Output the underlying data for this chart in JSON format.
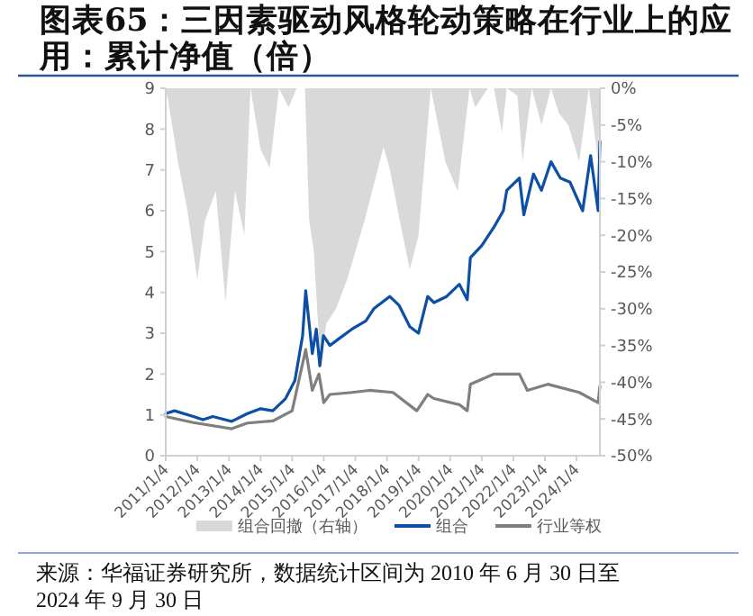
{
  "chart_data": {
    "type": "line",
    "title": "图表65：三因素驱动风格轮动策略在行业上的应用：累计净值（倍）",
    "annotations": [
      "来源：华福证券研究所，数据统计区间为 2010 年 6 月 30 日至 2024 年 9 月 30 日"
    ],
    "xlim": [
      "2011-01-04",
      "2024-09-30"
    ],
    "xticks": [
      {
        "value": "2011-01-04",
        "label": "2011/1/4"
      },
      {
        "value": "2012-01-04",
        "label": "2012/1/4"
      },
      {
        "value": "2013-01-04",
        "label": "2013/1/4"
      },
      {
        "value": "2014-01-04",
        "label": "2014/1/4"
      },
      {
        "value": "2015-01-04",
        "label": "2015/1/4"
      },
      {
        "value": "2016-01-04",
        "label": "2016/1/4"
      },
      {
        "value": "2017-01-04",
        "label": "2017/1/4"
      },
      {
        "value": "2018-01-04",
        "label": "2018/1/4"
      },
      {
        "value": "2019-01-04",
        "label": "2019/1/4"
      },
      {
        "value": "2020-01-04",
        "label": "2020/1/4"
      },
      {
        "value": "2021-01-04",
        "label": "2021/1/4"
      },
      {
        "value": "2022-01-04",
        "label": "2022/1/4"
      },
      {
        "value": "2023-01-04",
        "label": "2023/1/4"
      },
      {
        "value": "2024-01-04",
        "label": "2024/1/4"
      }
    ],
    "ylim": [
      0,
      9
    ],
    "yticks": [
      0,
      1,
      2,
      3,
      4,
      5,
      6,
      7,
      8,
      9
    ],
    "y2lim": [
      -50,
      0
    ],
    "y2ticks": [
      {
        "value": 0,
        "label": "0%"
      },
      {
        "value": -5,
        "label": "-5%"
      },
      {
        "value": -10,
        "label": "-10%"
      },
      {
        "value": -15,
        "label": "-15%"
      },
      {
        "value": -20,
        "label": "-20%"
      },
      {
        "value": -25,
        "label": "-25%"
      },
      {
        "value": -30,
        "label": "-30%"
      },
      {
        "value": -35,
        "label": "-35%"
      },
      {
        "value": -40,
        "label": "-40%"
      },
      {
        "value": -45,
        "label": "-45%"
      },
      {
        "value": -50,
        "label": "-50%"
      }
    ],
    "legend": "bottom",
    "series": [
      {
        "name": "组合回撤（右轴）",
        "type": "area",
        "axis": "y2",
        "color": "#d9d9d9",
        "x": [
          "2011-01-04",
          "2011-02-05",
          "2011-05-25",
          "2011-09-10",
          "2012-01-04",
          "2012-04-01",
          "2012-08-05",
          "2012-11-25",
          "2013-03-15",
          "2013-07-01",
          "2013-09-10",
          "2014-01-04",
          "2014-04-20",
          "2014-08-05",
          "2014-11-25",
          "2015-02-25",
          "2015-06-01",
          "2015-07-20",
          "2015-09-10",
          "2015-11-25",
          "2016-02-05",
          "2016-05-25",
          "2016-10-01",
          "2017-04-20",
          "2017-11-25",
          "2018-02-05",
          "2018-06-01",
          "2018-09-25",
          "2019-01-04",
          "2019-05-25",
          "2019-11-10",
          "2020-04-01",
          "2020-08-15",
          "2020-10-20",
          "2021-03-15",
          "2021-05-25",
          "2021-08-25",
          "2021-10-20",
          "2022-02-20",
          "2022-04-20",
          "2022-08-05",
          "2022-11-25",
          "2023-03-15",
          "2023-06-15",
          "2023-10-01",
          "2024-02-05",
          "2024-05-25",
          "2024-09-10",
          "2024-09-30"
        ],
        "values": [
          0,
          -2,
          -10,
          -16.5,
          -26,
          -18,
          -14,
          -29,
          -14,
          -20,
          0,
          -8.3,
          -10.8,
          0,
          -2.6,
          0,
          0,
          -18,
          -22,
          -37,
          -32,
          -30,
          -26,
          -18,
          -8,
          -11,
          -18,
          -24.7,
          -20,
          0,
          -10,
          -14,
          0,
          -2.6,
          0,
          0,
          -6,
          0,
          -1,
          -10,
          0,
          -5,
          0,
          -3.4,
          -5,
          -10,
          0,
          -10,
          0
        ]
      },
      {
        "name": "组合",
        "color": "#0d4ea6",
        "x": [
          "2011-01-04",
          "2011-04-15",
          "2011-11-20",
          "2012-03-10",
          "2012-07-01",
          "2013-02-05",
          "2013-08-05",
          "2014-01-05",
          "2014-05-25",
          "2014-10-20",
          "2015-02-05",
          "2015-05-05",
          "2015-06-10",
          "2015-08-25",
          "2015-10-10",
          "2015-11-20",
          "2016-01-01",
          "2016-03-15",
          "2016-07-01",
          "2016-11-25",
          "2017-05-05",
          "2017-08-05",
          "2018-02-05",
          "2018-05-25",
          "2018-09-25",
          "2019-01-03",
          "2019-04-20",
          "2019-07-01",
          "2019-11-25",
          "2020-04-20",
          "2020-07-20",
          "2020-08-25",
          "2021-01-04",
          "2021-05-25",
          "2021-09-10",
          "2021-10-20",
          "2022-03-15",
          "2022-05-05",
          "2022-08-25",
          "2022-11-25",
          "2023-03-15",
          "2023-07-01",
          "2023-10-20",
          "2024-03-15",
          "2024-06-15",
          "2024-09-10",
          "2024-09-30"
        ],
        "values": [
          1.03,
          1.1,
          0.96,
          0.88,
          0.96,
          0.84,
          1.03,
          1.15,
          1.1,
          1.4,
          1.84,
          2.94,
          4.04,
          2.5,
          3.1,
          2.2,
          2.94,
          2.7,
          2.87,
          3.1,
          3.3,
          3.6,
          3.9,
          3.68,
          3.16,
          3.0,
          3.9,
          3.75,
          3.9,
          4.2,
          3.82,
          4.85,
          5.15,
          5.6,
          6.0,
          6.5,
          6.8,
          5.9,
          6.9,
          6.5,
          7.2,
          6.8,
          6.7,
          6.0,
          7.35,
          6.0,
          7.7
        ]
      },
      {
        "name": "行业等权",
        "color": "#7f7f7f",
        "x": [
          "2011-01-04",
          "2011-11-20",
          "2013-02-05",
          "2013-08-05",
          "2014-05-25",
          "2015-01-04",
          "2015-06-10",
          "2015-08-25",
          "2015-11-10",
          "2016-01-04",
          "2016-03-15",
          "2016-11-25",
          "2017-06-15",
          "2018-03-15",
          "2018-12-15",
          "2019-04-20",
          "2019-07-01",
          "2020-04-20",
          "2020-07-20",
          "2020-08-25",
          "2021-05-25",
          "2022-03-15",
          "2022-06-15",
          "2023-02-05",
          "2024-02-05",
          "2024-09-10",
          "2024-09-30"
        ],
        "values": [
          0.96,
          0.81,
          0.66,
          0.8,
          0.85,
          1.1,
          2.6,
          1.6,
          2.0,
          1.3,
          1.5,
          1.55,
          1.6,
          1.55,
          1.1,
          1.5,
          1.4,
          1.25,
          1.1,
          1.75,
          2.0,
          2.0,
          1.6,
          1.75,
          1.55,
          1.3,
          1.7
        ]
      }
    ]
  }
}
